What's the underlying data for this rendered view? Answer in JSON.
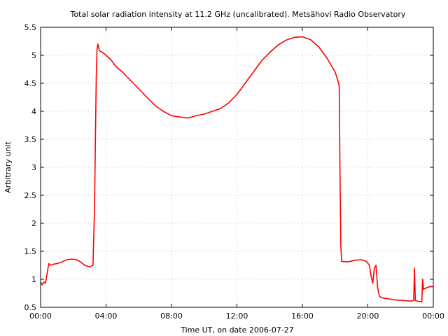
{
  "chart_data": {
    "type": "line",
    "title": "Total solar radiation intensity at 11.2 GHz (uncalibrated). Metsähovi Radio Observatory",
    "xlabel": "Time UT, on date 2006-07-27",
    "ylabel": "Arbitrary unit",
    "xlim": [
      0,
      24
    ],
    "ylim": [
      0.5,
      5.5
    ],
    "x_ticks": [
      0,
      4,
      8,
      12,
      16,
      20,
      24
    ],
    "x_tick_labels": [
      "00:00",
      "04:00",
      "08:00",
      "12:00",
      "16:00",
      "20:00",
      "00:00"
    ],
    "y_ticks": [
      0.5,
      1,
      1.5,
      2,
      2.5,
      3,
      3.5,
      4,
      4.5,
      5,
      5.5
    ],
    "y_tick_labels": [
      "0.5",
      "1",
      "1.5",
      "2",
      "2.5",
      "3",
      "3.5",
      "4",
      "4.5",
      "5",
      "5.5"
    ],
    "grid": true,
    "line_color": "#ff0000",
    "series": [
      {
        "x": [
          0.0,
          0.1,
          0.2,
          0.3,
          0.4,
          0.5,
          0.6,
          0.8,
          1.0,
          1.3,
          1.6,
          1.9,
          2.2,
          2.5,
          2.7,
          3.0,
          3.2,
          3.3,
          3.35,
          3.4,
          3.45,
          3.5,
          3.6,
          3.8,
          4.0,
          4.3,
          4.6,
          5.0,
          5.5,
          6.0,
          6.5,
          7.0,
          7.5,
          8.0,
          8.5,
          9.0,
          9.5,
          10.0,
          10.5,
          11.0,
          11.5,
          12.0,
          12.5,
          13.0,
          13.5,
          14.0,
          14.5,
          15.0,
          15.5,
          16.0,
          16.5,
          17.0,
          17.5,
          18.0,
          18.2,
          18.25,
          18.3,
          18.35,
          18.4,
          18.8,
          19.2,
          19.6,
          19.9,
          20.1,
          20.2,
          20.3,
          20.4,
          20.5,
          20.6,
          20.7,
          20.8,
          21.0,
          21.3,
          21.7,
          22.2,
          22.6,
          22.8,
          22.85,
          22.9,
          23.2,
          23.3,
          23.35,
          23.4,
          23.6,
          23.8,
          24.0
        ],
        "y": [
          0.95,
          0.9,
          0.95,
          0.93,
          1.1,
          1.28,
          1.25,
          1.27,
          1.28,
          1.31,
          1.35,
          1.36,
          1.35,
          1.3,
          1.25,
          1.22,
          1.25,
          2.3,
          3.5,
          4.6,
          5.1,
          5.2,
          5.08,
          5.05,
          5.0,
          4.92,
          4.8,
          4.7,
          4.55,
          4.4,
          4.25,
          4.1,
          4.0,
          3.92,
          3.9,
          3.88,
          3.92,
          3.95,
          4.0,
          4.05,
          4.15,
          4.3,
          4.5,
          4.7,
          4.9,
          5.05,
          5.18,
          5.27,
          5.32,
          5.33,
          5.28,
          5.15,
          4.95,
          4.7,
          4.52,
          4.45,
          2.8,
          1.6,
          1.32,
          1.31,
          1.34,
          1.35,
          1.32,
          1.25,
          1.05,
          0.93,
          1.2,
          1.25,
          0.85,
          0.7,
          0.68,
          0.66,
          0.65,
          0.63,
          0.62,
          0.61,
          0.62,
          1.2,
          0.62,
          0.6,
          0.6,
          1.0,
          0.82,
          0.85,
          0.87,
          0.87
        ]
      }
    ]
  }
}
